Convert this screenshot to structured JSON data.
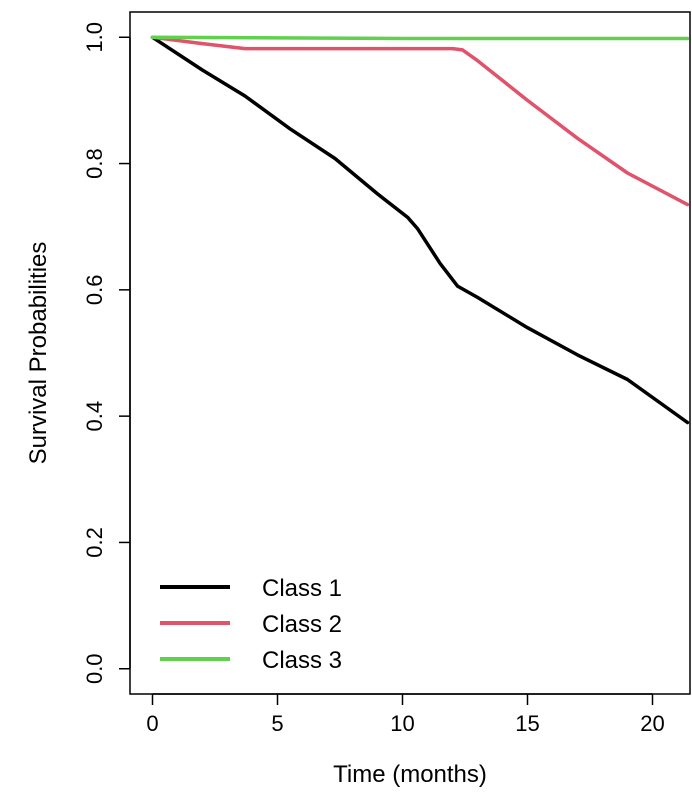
{
  "chart_data": {
    "type": "line",
    "title": "",
    "xlabel": "Time (months)",
    "ylabel": "Survival Probabilities",
    "xlim": [
      -0.9,
      21.5
    ],
    "ylim": [
      -0.04,
      1.04
    ],
    "x_ticks": [
      0,
      5,
      10,
      15,
      20
    ],
    "y_ticks": [
      0.0,
      0.2,
      0.4,
      0.6,
      0.8,
      1.0
    ],
    "x_tick_labels": [
      "0",
      "5",
      "10",
      "15",
      "20"
    ],
    "y_tick_labels": [
      "0.0",
      "0.2",
      "0.4",
      "0.6",
      "0.8",
      "1.0"
    ],
    "grid": false,
    "legend_position": "bottom-left",
    "series": [
      {
        "name": "Class 1",
        "color": "#000000",
        "x": [
          0,
          2,
          3.7,
          5.5,
          7.3,
          9,
          10.2,
          10.6,
          11.5,
          12.2,
          13,
          15,
          17,
          19,
          21.4
        ],
        "y": [
          1.0,
          0.948,
          0.907,
          0.855,
          0.808,
          0.752,
          0.715,
          0.697,
          0.642,
          0.606,
          0.588,
          0.54,
          0.497,
          0.458,
          0.39
        ]
      },
      {
        "name": "Class 2",
        "color": "#DF536B",
        "x": [
          0,
          2,
          3.7,
          5,
          8,
          10,
          12,
          12.4,
          13,
          15,
          17,
          19,
          21.4
        ],
        "y": [
          1.0,
          0.99,
          0.982,
          0.982,
          0.982,
          0.982,
          0.982,
          0.98,
          0.963,
          0.9,
          0.84,
          0.785,
          0.735
        ]
      },
      {
        "name": "Class 3",
        "color": "#61D04F",
        "x": [
          0,
          5,
          10,
          15,
          21.4
        ],
        "y": [
          1.0,
          0.999,
          0.998,
          0.998,
          0.998
        ]
      }
    ]
  }
}
